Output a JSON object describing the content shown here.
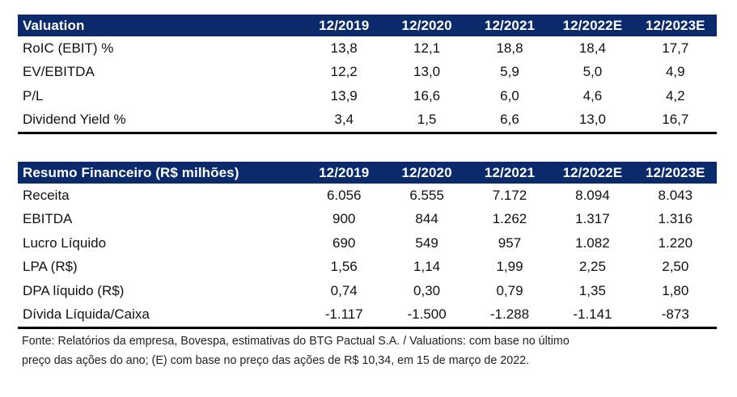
{
  "valuation": {
    "header": [
      "Valuation",
      "12/2019",
      "12/2020",
      "12/2021",
      "12/2022E",
      "12/2023E"
    ],
    "rows": [
      {
        "label": "RoIC (EBIT) %",
        "values": [
          "13,8",
          "12,1",
          "18,8",
          "18,4",
          "17,7"
        ]
      },
      {
        "label": "EV/EBITDA",
        "values": [
          "12,2",
          "13,0",
          "5,9",
          "5,0",
          "4,9"
        ]
      },
      {
        "label": "P/L",
        "values": [
          "13,9",
          "16,6",
          "6,0",
          "4,6",
          "4,2"
        ]
      },
      {
        "label": "Dividend Yield %",
        "values": [
          "3,4",
          "1,5",
          "6,6",
          "13,0",
          "16,7"
        ]
      }
    ]
  },
  "resumo": {
    "header": [
      "Resumo Financeiro (R$ milhões)",
      "12/2019",
      "12/2020",
      "12/2021",
      "12/2022E",
      "12/2023E"
    ],
    "rows": [
      {
        "label": "Receita",
        "values": [
          "6.056",
          "6.555",
          "7.172",
          "8.094",
          "8.043"
        ]
      },
      {
        "label": "EBITDA",
        "values": [
          "900",
          "844",
          "1.262",
          "1.317",
          "1.316"
        ]
      },
      {
        "label": "Lucro Líquido",
        "values": [
          "690",
          "549",
          "957",
          "1.082",
          "1.220"
        ]
      },
      {
        "label": "LPA (R$)",
        "values": [
          "1,56",
          "1,14",
          "1,99",
          "2,25",
          "2,50"
        ]
      },
      {
        "label": "DPA líquido (R$)",
        "values": [
          "0,74",
          "0,30",
          "0,79",
          "1,35",
          "1,80"
        ]
      },
      {
        "label": "Dívida Líquida/Caixa",
        "values": [
          "-1.117",
          "-1.500",
          "-1.288",
          "-1.141",
          "-873"
        ]
      }
    ]
  },
  "footnote": {
    "line1": "Fonte: Relatórios da empresa, Bovespa, estimativas do BTG Pactual S.A. / Valuations: com base no último",
    "line2": "preço das ações do ano; (E) com base no preço das ações de R$ 10,34, em 15 de março de 2022."
  }
}
